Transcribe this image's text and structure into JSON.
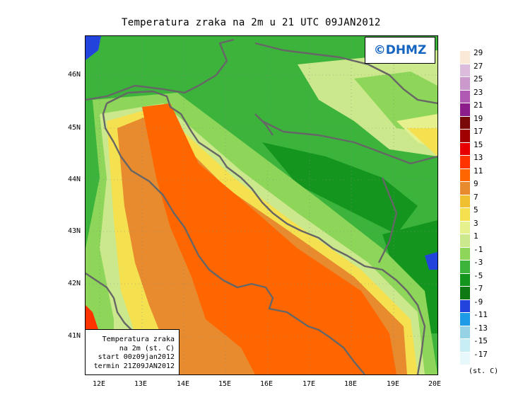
{
  "title": "Temperatura zraka na 2m u 21 UTC 09JAN2012",
  "logo": "©DHMZ",
  "info_box": {
    "line1": "Temperatura zraka",
    "line2": "na 2m (st. C)",
    "line3": "start 00z09jan2012",
    "line4": "termin 21Z09JAN2012"
  },
  "lat_labels": [
    "46N",
    "45N",
    "44N",
    "43N",
    "42N",
    "41N"
  ],
  "lon_labels": [
    "12E",
    "13E",
    "14E",
    "15E",
    "16E",
    "17E",
    "18E",
    "19E",
    "20E"
  ],
  "legend": {
    "labels": [
      "29",
      "27",
      "25",
      "23",
      "21",
      "19",
      "17",
      "15",
      "13",
      "11",
      "9",
      "7",
      "5",
      "3",
      "1",
      "-1",
      "-3",
      "-5",
      "-7",
      "-9",
      "-11",
      "-13",
      "-15",
      "-17"
    ],
    "colors": [
      "#fbe9d7",
      "#dcbcdc",
      "#cc99cc",
      "#b05ab4",
      "#8c1e8c",
      "#7a0a0a",
      "#a00000",
      "#e60000",
      "#ff3300",
      "#ff6600",
      "#e88a2e",
      "#f0c030",
      "#f5e050",
      "#e6f08c",
      "#cce88c",
      "#8ed65a",
      "#3cb43c",
      "#14961e",
      "#0f7a14",
      "#2244dd",
      "#1e9be6",
      "#96d2e6",
      "#c8eef5",
      "#e6f8fa"
    ],
    "units": "(st. C)"
  },
  "map_colors": {
    "land_green": "#3cb43c",
    "dark_green": "#14961e",
    "light_green": "#8ed65a",
    "pale_green": "#cce88c",
    "yellow_green": "#e6f08c",
    "yellow": "#f0c030",
    "orange": "#e88a2e",
    "deep_orange": "#ff6600",
    "red": "#ff3300",
    "blue": "#2244dd",
    "coast": "#666666"
  }
}
